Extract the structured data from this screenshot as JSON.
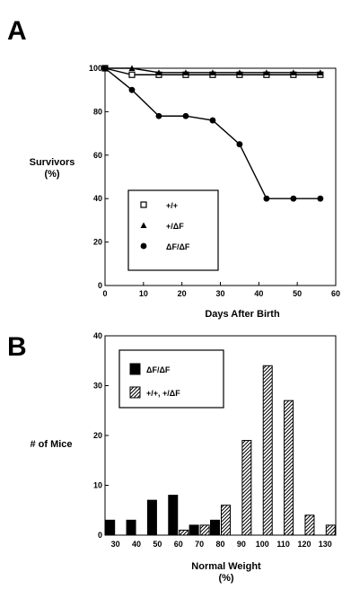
{
  "panels": {
    "a_label": "A",
    "b_label": "B"
  },
  "chart_data": [
    {
      "type": "line",
      "panel": "A",
      "xlabel": "Days After Birth",
      "ylabel": "Survivors\n(%)",
      "xlim": [
        0,
        60
      ],
      "ylim": [
        0,
        100
      ],
      "xticks": [
        0,
        10,
        20,
        30,
        40,
        50,
        60
      ],
      "yticks": [
        0,
        20,
        40,
        60,
        80,
        100
      ],
      "legend_position": "bottom-left",
      "series": [
        {
          "name": "+/+",
          "marker": "open-square",
          "x": [
            0,
            7,
            14,
            21,
            28,
            35,
            42,
            49,
            56
          ],
          "y": [
            100,
            97,
            97,
            97,
            97,
            97,
            97,
            97,
            97
          ]
        },
        {
          "name": "+/ΔF",
          "marker": "filled-triangle",
          "x": [
            0,
            7,
            14,
            21,
            28,
            35,
            42,
            49,
            56
          ],
          "y": [
            100,
            100,
            98,
            98,
            98,
            98,
            98,
            98,
            98
          ]
        },
        {
          "name": "ΔF/ΔF",
          "marker": "filled-circle",
          "x": [
            0,
            7,
            14,
            21,
            28,
            35,
            42,
            49,
            56
          ],
          "y": [
            100,
            90,
            78,
            78,
            76,
            65,
            40,
            40,
            40
          ]
        }
      ]
    },
    {
      "type": "bar",
      "panel": "B",
      "xlabel": "Normal Weight\n(%)",
      "ylabel": "# of Mice",
      "ylim": [
        0,
        40
      ],
      "yticks": [
        0,
        10,
        20,
        30,
        40
      ],
      "categories": [
        "30",
        "40",
        "50",
        "60",
        "70",
        "80",
        "90",
        "100",
        "110",
        "120",
        "130"
      ],
      "legend_position": "top-left",
      "series": [
        {
          "name": "ΔF/ΔF",
          "fill": "solid",
          "values": [
            3,
            3,
            7,
            8,
            2,
            3,
            0,
            0,
            0,
            0,
            0
          ]
        },
        {
          "name": "+/+, +/ΔF",
          "fill": "hatched",
          "values": [
            0,
            0,
            0,
            1,
            2,
            6,
            19,
            34,
            27,
            4,
            2
          ]
        }
      ]
    }
  ]
}
